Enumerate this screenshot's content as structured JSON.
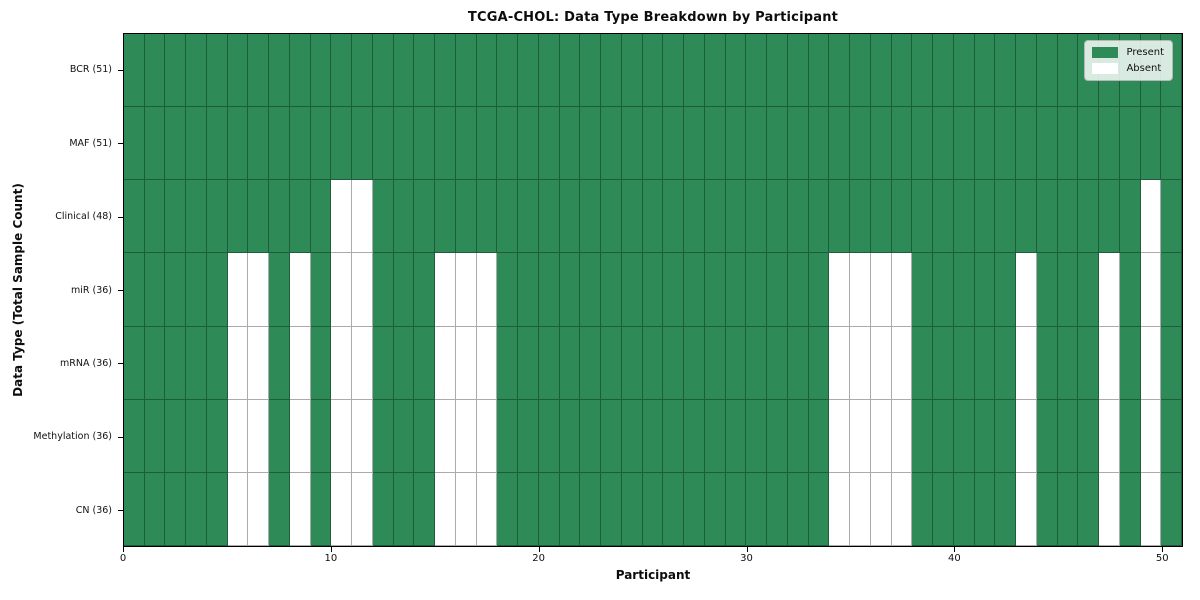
{
  "chart_data": {
    "type": "heatmap",
    "title": "TCGA-CHOL: Data Type Breakdown by Participant",
    "xlabel": "Participant",
    "ylabel": "Data Type (Total Sample Count)",
    "n_participants": 51,
    "x_range": [
      0,
      51
    ],
    "x_ticks": [
      0,
      10,
      20,
      30,
      40,
      50
    ],
    "rows": [
      {
        "label": "BCR (51)",
        "total": 51,
        "absent_participants": []
      },
      {
        "label": "MAF (51)",
        "total": 51,
        "absent_participants": []
      },
      {
        "label": "Clinical (48)",
        "total": 48,
        "absent_participants": [
          10,
          11,
          49
        ]
      },
      {
        "label": "miR (36)",
        "total": 36,
        "absent_participants": [
          5,
          6,
          8,
          10,
          11,
          15,
          16,
          17,
          34,
          35,
          36,
          37,
          43,
          47,
          49
        ]
      },
      {
        "label": "mRNA (36)",
        "total": 36,
        "absent_participants": [
          5,
          6,
          8,
          10,
          11,
          15,
          16,
          17,
          34,
          35,
          36,
          37,
          43,
          47,
          49
        ]
      },
      {
        "label": "Methylation (36)",
        "total": 36,
        "absent_participants": [
          5,
          6,
          8,
          10,
          11,
          15,
          16,
          17,
          34,
          35,
          36,
          37,
          43,
          47,
          49
        ]
      },
      {
        "label": "CN (36)",
        "total": 36,
        "absent_participants": [
          5,
          6,
          8,
          10,
          11,
          15,
          16,
          17,
          34,
          35,
          36,
          37,
          43,
          47,
          49
        ]
      }
    ],
    "legend": [
      {
        "label": "Present",
        "color": "#2E8B57"
      },
      {
        "label": "Absent",
        "color": "#FFFFFF"
      }
    ],
    "legend_position": "upper right",
    "colors": {
      "present": "#2E8B57",
      "absent": "#FFFFFF",
      "cell_edge": "rgba(0,0,0,0.33)",
      "frame": "#000000"
    },
    "grid": "per-cell borders"
  }
}
